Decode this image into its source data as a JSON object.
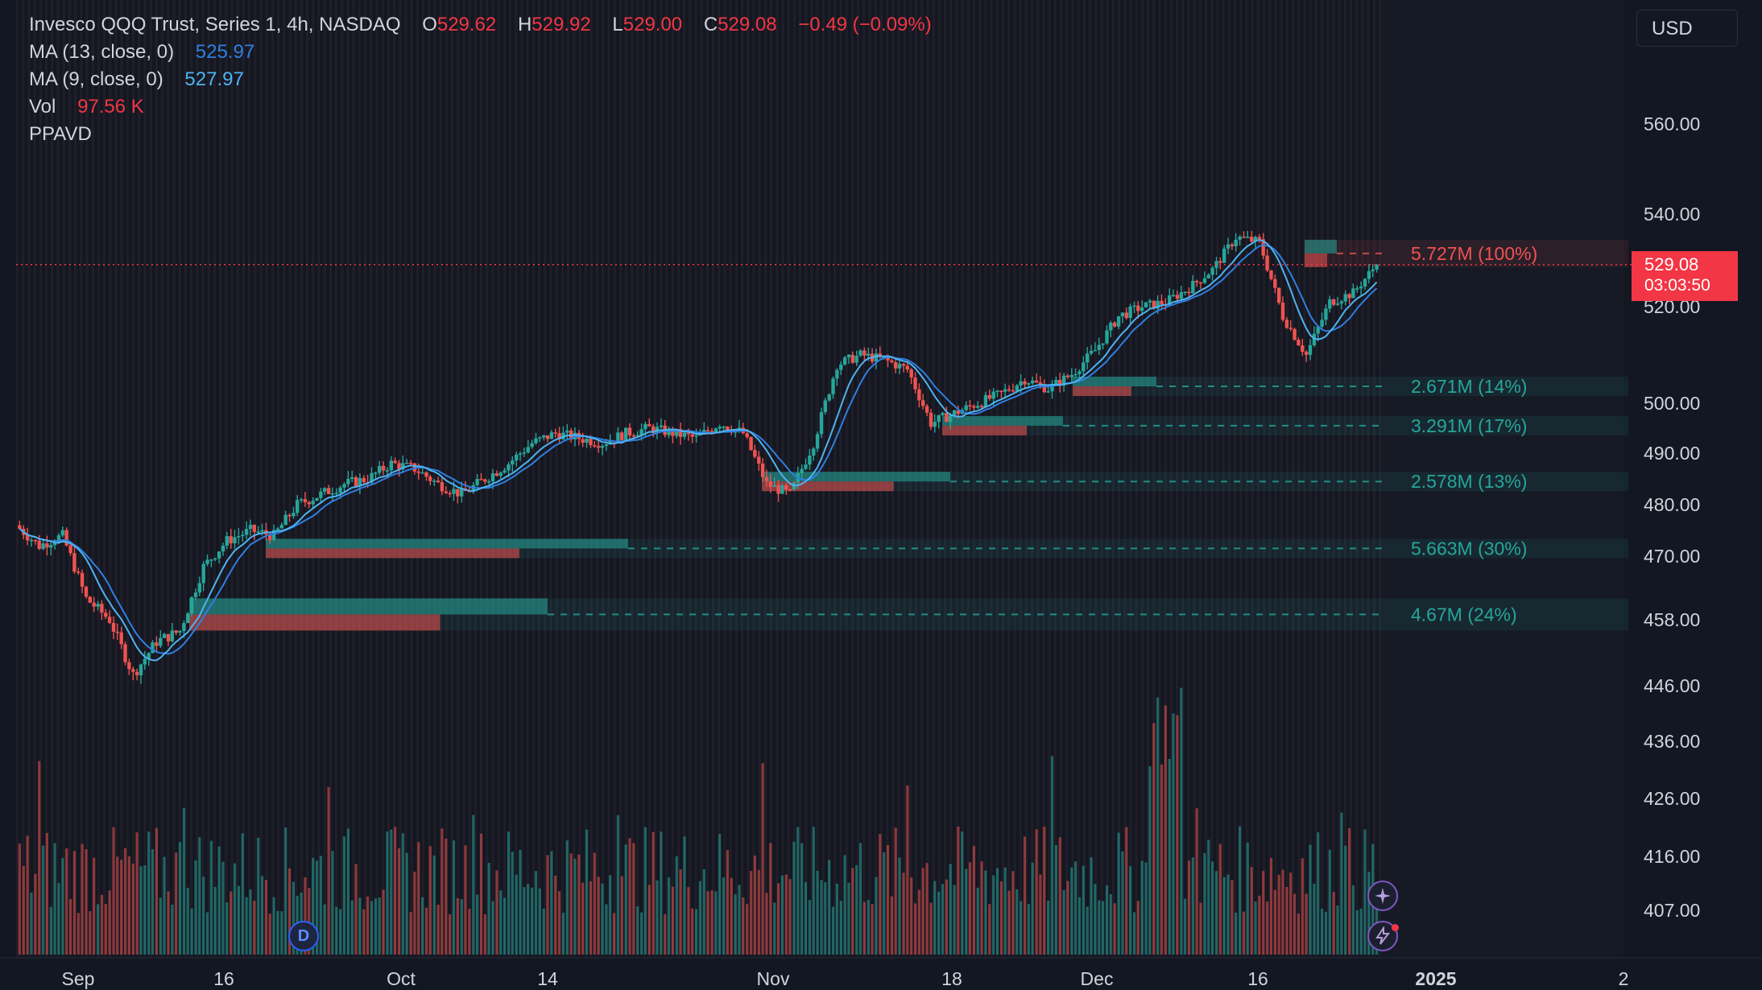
{
  "header": {
    "symbol": "Invesco QQQ Trust, Series 1, 4h, NASDAQ",
    "o_label": "O",
    "o_value": "529.62",
    "h_label": "H",
    "h_value": "529.92",
    "l_label": "L",
    "l_value": "529.00",
    "c_label": "C",
    "c_value": "529.08",
    "change": "−0.49 (−0.09%)"
  },
  "indicators": {
    "ma13_label": "MA (13, close, 0)",
    "ma13_value": "525.97",
    "ma9_label": "MA (9, close, 0)",
    "ma9_value": "527.97",
    "vol_label": "Vol",
    "vol_value": "97.56 K",
    "ppavd_label": "PPAVD"
  },
  "currency": "USD",
  "last_price": {
    "price": "529.08",
    "countdown": "03:03:50"
  },
  "icons": {
    "d_badge": "D",
    "star_button": "sparkle-icon",
    "lightning_button": "lightning-icon"
  },
  "colors": {
    "up": "#26a69a",
    "down": "#ef5350",
    "ma13": "#2f7fe0",
    "ma9": "#4fb3f0",
    "price_line": "#f23645",
    "background": "#131722"
  },
  "chart_data": {
    "type": "candlestick",
    "title": "Invesco QQQ Trust, Series 1, 4h, NASDAQ",
    "y_ticks": [
      "560.00",
      "540.00",
      "520.00",
      "500.00",
      "490.00",
      "480.00",
      "470.00",
      "458.00",
      "446.00",
      "436.00",
      "426.00",
      "416.00",
      "407.00"
    ],
    "x_ticks": [
      "Sep",
      "16",
      "Oct",
      "14",
      "Nov",
      "18",
      "Dec",
      "16",
      "2025",
      "2"
    ],
    "close_path": [
      [
        "Sep",
        476
      ],
      [
        "Sep",
        472
      ],
      [
        "Sep",
        474
      ],
      [
        "Sep",
        462
      ],
      [
        "Sep",
        458
      ],
      [
        "Sep",
        448
      ],
      [
        "Sep",
        454
      ],
      [
        "Sep",
        456
      ],
      [
        "16",
        468
      ],
      [
        "16",
        473
      ],
      [
        "16",
        475
      ],
      [
        "16",
        474
      ],
      [
        "16",
        480
      ],
      [
        "16",
        482
      ],
      [
        "16",
        484
      ],
      [
        "16",
        485
      ],
      [
        "16",
        488
      ],
      [
        "16",
        487
      ],
      [
        "Oct",
        484
      ],
      [
        "Oct",
        482
      ],
      [
        "Oct",
        485
      ],
      [
        "14",
        488
      ],
      [
        "14",
        492
      ],
      [
        "14",
        494
      ],
      [
        "14",
        493
      ],
      [
        "14",
        492
      ],
      [
        "14",
        494
      ],
      [
        "14",
        495
      ],
      [
        "14",
        494
      ],
      [
        "14",
        493
      ],
      [
        "14",
        496
      ],
      [
        "Nov",
        494
      ],
      [
        "Nov",
        484
      ],
      [
        "Nov",
        482
      ],
      [
        "Nov",
        492
      ],
      [
        "Nov",
        508
      ],
      [
        "Nov",
        510
      ],
      [
        "Nov",
        509
      ],
      [
        "Nov",
        507
      ],
      [
        "18",
        496
      ],
      [
        "18",
        498
      ],
      [
        "18",
        500
      ],
      [
        "18",
        502
      ],
      [
        "18",
        505
      ],
      [
        "18",
        503
      ],
      [
        "Dec",
        506
      ],
      [
        "Dec",
        511
      ],
      [
        "Dec",
        518
      ],
      [
        "Dec",
        520
      ],
      [
        "Dec",
        521
      ],
      [
        "Dec",
        524
      ],
      [
        "Dec",
        528
      ],
      [
        "16",
        535
      ],
      [
        "16",
        534
      ],
      [
        "16",
        518
      ],
      [
        "16",
        510
      ],
      [
        "16",
        521
      ],
      [
        "16",
        523
      ],
      [
        "16",
        529.08
      ]
    ],
    "last_close": 529.08,
    "volume_profile_levels": [
      {
        "label": "5.727M (100%)",
        "price": 531.5,
        "color": "#ef5350"
      },
      {
        "label": "2.671M (14%)",
        "price": 503.5,
        "color": "#26a69a"
      },
      {
        "label": "3.291M (17%)",
        "price": 495.5,
        "color": "#26a69a"
      },
      {
        "label": "2.578M (13%)",
        "price": 484.5,
        "color": "#26a69a"
      },
      {
        "label": "5.663M (30%)",
        "price": 471.5,
        "color": "#26a69a"
      },
      {
        "label": "4.67M (24%)",
        "price": 459.0,
        "color": "#26a69a"
      }
    ],
    "series": [
      {
        "name": "MA (13, close, 0)",
        "last": 525.97
      },
      {
        "name": "MA (9, close, 0)",
        "last": 527.97
      },
      {
        "name": "Vol",
        "last": "97.56 K"
      }
    ],
    "grid": false,
    "legend_position": "top-left"
  }
}
